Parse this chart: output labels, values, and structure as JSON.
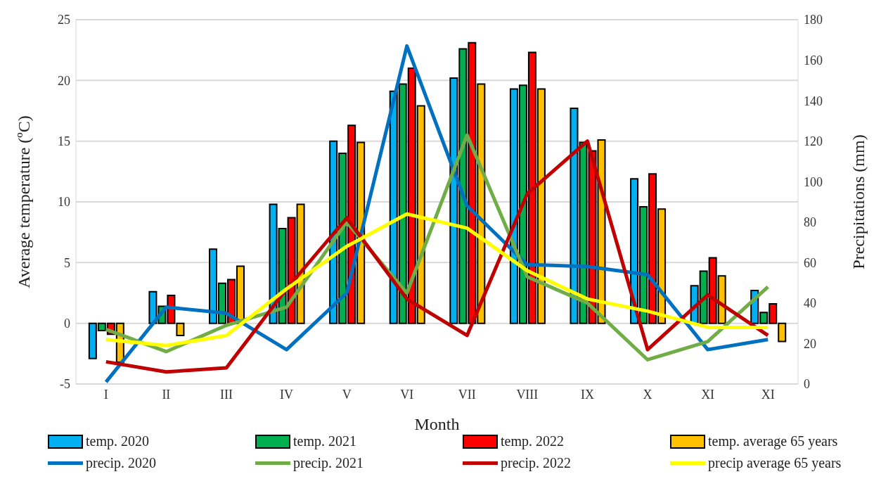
{
  "chart_data": {
    "type": "bar",
    "categories": [
      "I",
      "II",
      "III",
      "IV",
      "V",
      "VI",
      "VII",
      "VIII",
      "IX",
      "X",
      "XI",
      "XI"
    ],
    "xlabel": "Month",
    "ylabel": "Average temperature (ºC)",
    "y2label": "Precipitations (mm)",
    "ylim": [
      -5,
      25
    ],
    "yticks": [
      -5,
      0,
      5,
      10,
      15,
      20,
      25
    ],
    "y2lim": [
      0,
      180
    ],
    "y2ticks": [
      0,
      20,
      40,
      60,
      80,
      100,
      120,
      140,
      160,
      180
    ],
    "grid": "y",
    "legend": "bottom",
    "series": [
      {
        "name": "temp. 2020",
        "color": "#00b0f0",
        "values": [
          -2.9,
          2.6,
          6.1,
          9.8,
          15.0,
          19.1,
          20.2,
          19.3,
          17.7,
          11.9,
          3.1,
          2.7
        ]
      },
      {
        "name": "temp. 2021",
        "color": "#00b050",
        "values": [
          -0.6,
          1.4,
          3.3,
          7.8,
          14.0,
          19.7,
          22.6,
          19.6,
          14.9,
          9.6,
          4.3,
          0.9
        ]
      },
      {
        "name": "temp. 2022",
        "color": "#ff0000",
        "values": [
          -0.9,
          2.3,
          3.6,
          8.7,
          16.3,
          21.0,
          23.1,
          22.3,
          14.2,
          12.3,
          5.4,
          1.6
        ]
      },
      {
        "name": "temp. average 65 years",
        "color": "#ffc000",
        "values": [
          -3.2,
          -1.0,
          4.7,
          9.8,
          14.9,
          17.9,
          19.7,
          19.3,
          15.1,
          9.4,
          3.9,
          -1.5
        ]
      },
      {
        "name": "precip. 2020",
        "type": "line",
        "axis": "y2",
        "color": "#0070c0",
        "values": [
          1,
          38,
          35,
          17,
          45,
          167,
          88,
          59,
          58,
          54,
          17,
          22
        ]
      },
      {
        "name": "precip. 2021",
        "type": "line",
        "axis": "y2",
        "color": "#70ad47",
        "values": [
          27,
          16,
          29,
          38,
          80,
          45,
          123,
          53,
          40,
          12,
          21,
          48
        ]
      },
      {
        "name": "precip. 2022",
        "type": "line",
        "axis": "y2",
        "color": "#c00000",
        "values": [
          11,
          6,
          8,
          47,
          82,
          42,
          24,
          94,
          120,
          17,
          44,
          24
        ]
      },
      {
        "name": "precip average 65 years",
        "type": "line",
        "axis": "y2",
        "color": "#ffff00",
        "values": [
          22,
          19,
          24,
          47,
          68,
          84,
          77,
          56,
          42,
          36,
          28,
          28
        ]
      }
    ]
  }
}
